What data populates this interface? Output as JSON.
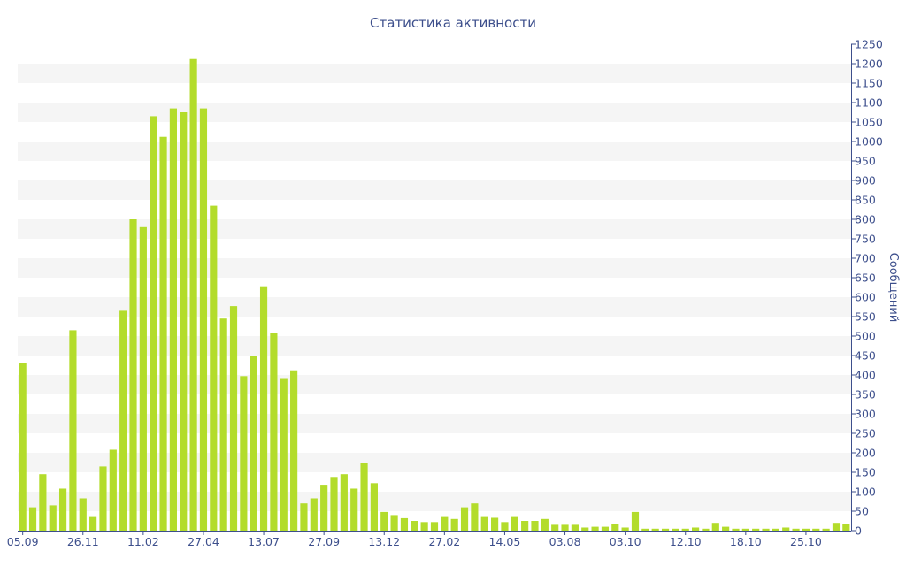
{
  "chart_data": {
    "type": "bar",
    "title": "Статистика активности",
    "ylabel": "Сообщений",
    "xlabel": "",
    "ylim": [
      0,
      1250
    ],
    "y_ticks": [
      0,
      50,
      100,
      150,
      200,
      250,
      300,
      350,
      400,
      450,
      500,
      550,
      600,
      650,
      700,
      750,
      800,
      850,
      900,
      950,
      1000,
      1050,
      1100,
      1150,
      1200,
      1250
    ],
    "y_axis_position": "right",
    "grid": "alternating horizontal bands",
    "x_tick_labels": [
      {
        "index": 0,
        "label": "05.09"
      },
      {
        "index": 6,
        "label": "26.11"
      },
      {
        "index": 12,
        "label": "11.02"
      },
      {
        "index": 18,
        "label": "27.04"
      },
      {
        "index": 24,
        "label": "13.07"
      },
      {
        "index": 30,
        "label": "27.09"
      },
      {
        "index": 36,
        "label": "13.12"
      },
      {
        "index": 42,
        "label": "27.02"
      },
      {
        "index": 48,
        "label": "14.05"
      },
      {
        "index": 54,
        "label": "03.08"
      },
      {
        "index": 60,
        "label": "03.10"
      },
      {
        "index": 66,
        "label": "12.10"
      },
      {
        "index": 72,
        "label": "18.10"
      },
      {
        "index": 78,
        "label": "25.10"
      }
    ],
    "values": [
      430,
      60,
      145,
      65,
      108,
      515,
      83,
      35,
      165,
      208,
      565,
      800,
      780,
      1065,
      1012,
      1085,
      1075,
      1212,
      1085,
      835,
      545,
      577,
      397,
      448,
      628,
      508,
      392,
      412,
      70,
      83,
      118,
      138,
      145,
      108,
      175,
      122,
      48,
      40,
      32,
      25,
      22,
      22,
      35,
      30,
      60,
      70,
      35,
      33,
      22,
      35,
      25,
      25,
      30,
      15,
      15,
      15,
      8,
      10,
      10,
      18,
      8,
      48,
      5,
      5,
      5,
      5,
      5,
      8,
      5,
      20,
      10,
      5,
      5,
      5,
      5,
      5,
      8,
      5,
      5,
      5,
      5,
      20,
      18
    ]
  },
  "colors": {
    "bar": "#b3dc2b",
    "text": "#3d4f8c",
    "band": "#f5f5f5",
    "axis": "#3d4f8c"
  }
}
